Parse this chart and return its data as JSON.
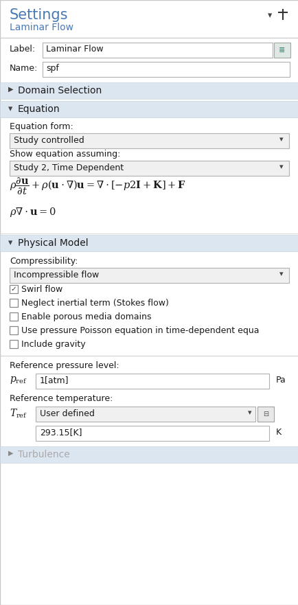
{
  "bg_color": "#f0f0f0",
  "panel_bg": "#ffffff",
  "title_color": "#4a7ab5",
  "subtitle_color": "#4a7ab5",
  "text_color": "#1a1a1a",
  "section_header_bg": "#dce6f1",
  "input_bg": "#f5f5f5",
  "dropdown_bg": "#f0f0f0",
  "border_color": "#b0b8c8",
  "input_border": "#b8b8b8",
  "title": "Settings",
  "subtitle": "Laminar Flow",
  "label_label": "Label:",
  "label_value": "Laminar Flow",
  "name_label": "Name:",
  "name_value": "spf",
  "section1": "Domain Selection",
  "section2": "Equation",
  "eq_form_label": "Equation form:",
  "eq_form_value": "Study controlled",
  "eq_show_label": "Show equation assuming:",
  "eq_show_value": "Study 2, Time Dependent",
  "section3": "Physical Model",
  "compress_label": "Compressibility:",
  "compress_value": "Incompressible flow",
  "checkboxes": [
    {
      "label": "Swirl flow",
      "checked": true
    },
    {
      "label": "Neglect inertial term (Stokes flow)",
      "checked": false
    },
    {
      "label": "Enable porous media domains",
      "checked": false
    },
    {
      "label": "Use pressure Poisson equation in time-dependent equa",
      "checked": false
    },
    {
      "label": "Include gravity",
      "checked": false
    }
  ],
  "ref_pressure_label": "Reference pressure level:",
  "ref_pressure_value": "1[atm]",
  "ref_pressure_unit": "Pa",
  "ref_temp_label": "Reference temperature:",
  "ref_temp_dropdown": "User defined",
  "ref_temp_value": "293.15[K]",
  "ref_temp_unit": "K",
  "section4": "Turbulence",
  "figsize": [
    4.35,
    8.81
  ],
  "dpi": 100
}
